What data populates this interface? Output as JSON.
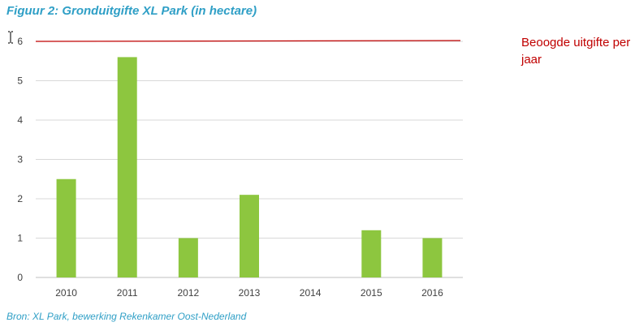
{
  "figure": {
    "title": "Figuur 2: Gronduitgifte XL Park (in hectare)",
    "source": "Bron: XL Park, bewerking Rekenkamer Oost-Nederland"
  },
  "chart_data": {
    "type": "bar",
    "title": "Figuur 2: Gronduitgifte XL Park (in hectare)",
    "categories": [
      "2010",
      "2011",
      "2012",
      "2013",
      "2014",
      "2015",
      "2016"
    ],
    "values": [
      2.5,
      5.6,
      1.0,
      2.1,
      0,
      1.2,
      1.0
    ],
    "ylim": [
      0,
      6
    ],
    "yticks": [
      "0",
      "1",
      "2",
      "3",
      "4",
      "5",
      "6"
    ],
    "xlabel": "",
    "ylabel": "",
    "grid": true,
    "bar_color": "#8dc63f",
    "reference_line": {
      "label": "Beoogde uitgifte per jaar",
      "value": 6,
      "color": "#c00000"
    },
    "legend_position": "right"
  }
}
